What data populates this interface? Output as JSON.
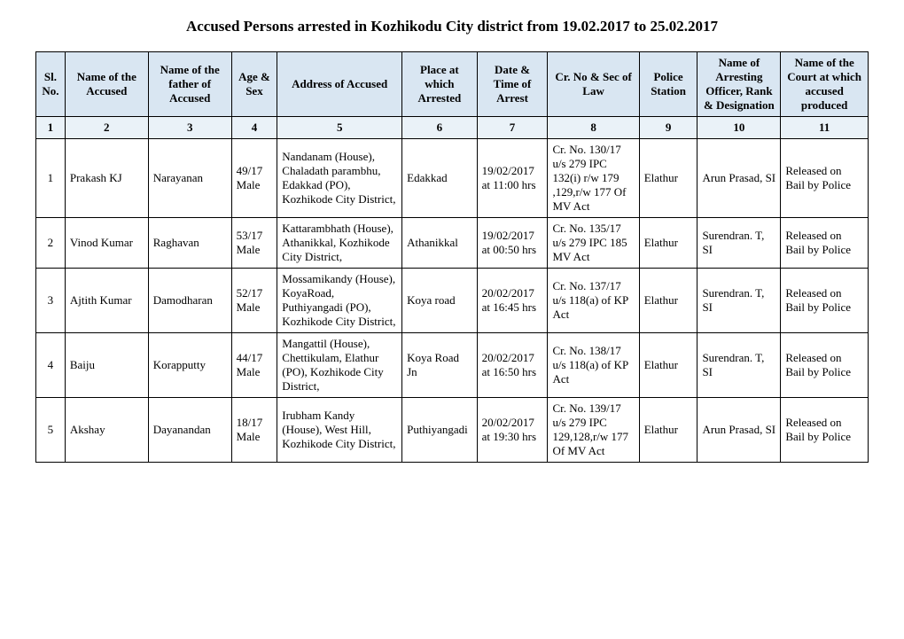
{
  "title": "Accused Persons arrested in  Kozhikodu City  district from   19.02.2017 to 25.02.2017",
  "headers": {
    "h1": "Sl. No.",
    "h2": "Name of the Accused",
    "h3": "Name of the father of Accused",
    "h4": "Age & Sex",
    "h5": "Address of Accused",
    "h6": "Place at which Arrested",
    "h7": "Date & Time of Arrest",
    "h8": "Cr. No & Sec of Law",
    "h9": "Police Station",
    "h10": "Name of Arresting Officer, Rank & Designation",
    "h11": "Name of the Court at which accused produced"
  },
  "numlabels": {
    "n1": "1",
    "n2": "2",
    "n3": "3",
    "n4": "4",
    "n5": "5",
    "n6": "6",
    "n7": "7",
    "n8": "8",
    "n9": "9",
    "n10": "10",
    "n11": "11"
  },
  "rows": [
    {
      "sl": "1",
      "name": "Prakash KJ",
      "father": "Narayanan",
      "age": "49/17 Male",
      "address": "Nandanam (House), Chaladath parambhu, Edakkad (PO), Kozhikode City District,",
      "place": "Edakkad",
      "datetime": "19/02/2017 at  11:00 hrs",
      "crno": "Cr. No. 130/17 u/s 279 IPC 132(i) r/w 179 ,129,r/w 177 Of MV Act",
      "station": "Elathur",
      "officer": "Arun Prasad, SI",
      "court": "Released on Bail by Police"
    },
    {
      "sl": "2",
      "name": "Vinod Kumar",
      "father": "Raghavan",
      "age": "53/17 Male",
      "address": "Kattarambhath (House), Athanikkal, Kozhikode City District,",
      "place": "Athanikkal",
      "datetime": "19/02/2017 at  00:50 hrs",
      "crno": "Cr. No. 135/17 u/s 279 IPC 185 MV Act",
      "station": "Elathur",
      "officer": "Surendran. T, SI",
      "court": "Released on Bail by Police"
    },
    {
      "sl": "3",
      "name": "Ajtith Kumar",
      "father": "Damodharan",
      "age": "52/17 Male",
      "address": "Mossamikandy (House), KoyaRoad, Puthiyangadi (PO), Kozhikode City District,",
      "place": "Koya road",
      "datetime": "20/02/2017 at  16:45 hrs",
      "crno": "Cr. No. 137/17 u/s 118(a) of KP Act",
      "station": "Elathur",
      "officer": "Surendran. T, SI",
      "court": "Released on Bail by Police"
    },
    {
      "sl": "4",
      "name": "Baiju",
      "father": "Korapputty",
      "age": "44/17 Male",
      "address": "Mangattil (House), Chettikulam, Elathur (PO), Kozhikode City District,",
      "place": "Koya Road Jn",
      "datetime": "20/02/2017 at  16:50 hrs",
      "crno": "Cr. No. 138/17 u/s 118(a) of KP Act",
      "station": "Elathur",
      "officer": "Surendran. T, SI",
      "court": "Released on Bail by Police"
    },
    {
      "sl": "5",
      "name": "Akshay",
      "father": "Dayanandan",
      "age": "18/17 Male",
      "address": "Irubham Kandy (House), West Hill, Kozhikode City District,",
      "place": "Puthiyangadi",
      "datetime": "20/02/2017 at  19:30 hrs",
      "crno": "Cr. No. 139/17 u/s 279 IPC 129,128,r/w 177 Of MV Act",
      "station": "Elathur",
      "officer": "Arun Prasad, SI",
      "court": "Released on Bail by Police"
    }
  ]
}
